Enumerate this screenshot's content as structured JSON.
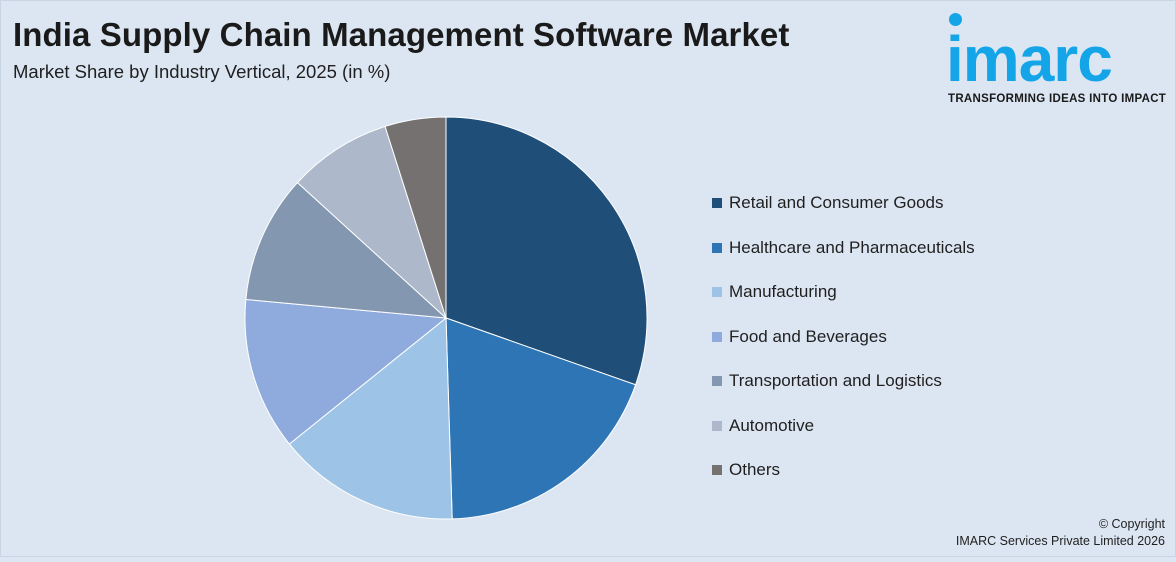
{
  "header": {
    "title": "India Supply Chain Management Software Market",
    "subtitle": "Market Share by Industry Vertical, 2025 (in %)"
  },
  "logo": {
    "wordmark": "imarc",
    "tagline": "TRANSFORMING IDEAS INTO IMPACT",
    "color": "#14a4e8"
  },
  "chart_data": {
    "type": "pie",
    "title": "India Supply Chain Management Software Market",
    "subtitle": "Market Share by Industry Vertical, 2025 (in %)",
    "legend_position": "right",
    "start_angle": "12 o'clock, clockwise",
    "series": [
      {
        "name": "Retail and Consumer Goods",
        "value": 31.0,
        "color": "#1f4e79"
      },
      {
        "name": "Healthcare and Pharmaceuticals",
        "value": 19.5,
        "color": "#2e75b6"
      },
      {
        "name": "Manufacturing",
        "value": 15.0,
        "color": "#9dc3e6"
      },
      {
        "name": "Food and Beverages",
        "value": 12.5,
        "color": "#8faadc"
      },
      {
        "name": "Transportation and Logistics",
        "value": 10.5,
        "color": "#8497b0"
      },
      {
        "name": "Automotive",
        "value": 8.5,
        "color": "#adb9ca"
      },
      {
        "name": "Others",
        "value": 5.0,
        "color": "#767171"
      }
    ]
  },
  "footer": {
    "copyright_line1": "© Copyright",
    "copyright_line2": "IMARC Services Private Limited 2026"
  }
}
